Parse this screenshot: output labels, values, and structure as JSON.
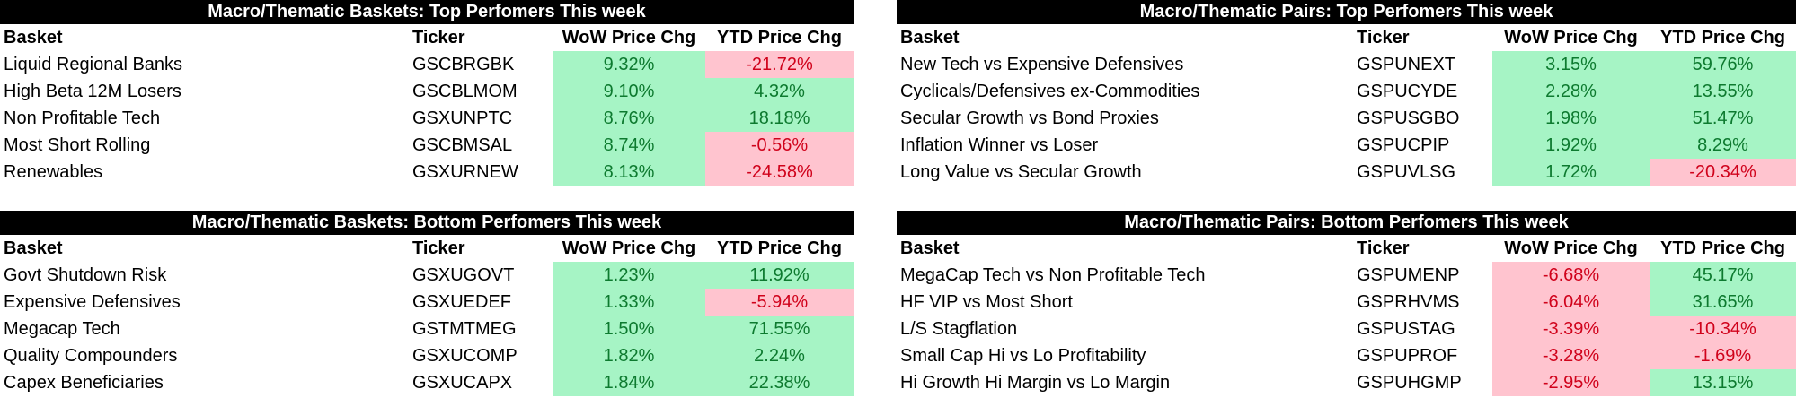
{
  "colors": {
    "positive_bg": "#a6f4c5",
    "positive_text": "#0d7a2f",
    "negative_bg": "#ffc4cf",
    "negative_text": "#d0021b",
    "title_bg": "#000000"
  },
  "panels": [
    {
      "title": "Macro/Thematic Baskets: Top Perfomers This week",
      "headers": [
        "Basket",
        "Ticker",
        "WoW Price Chg",
        "YTD Price Chg"
      ],
      "rows": [
        [
          "Liquid Regional Banks",
          "GSCBRGBK",
          "9.32%",
          "-21.72%"
        ],
        [
          "High Beta 12M Losers",
          "GSCBLMOM",
          "9.10%",
          "4.32%"
        ],
        [
          "Non Profitable Tech",
          "GSXUNPTC",
          "8.76%",
          "18.18%"
        ],
        [
          "Most Short Rolling",
          "GSCBMSAL",
          "8.74%",
          "-0.56%"
        ],
        [
          "Renewables",
          "GSXURNEW",
          "8.13%",
          "-24.58%"
        ]
      ]
    },
    {
      "title": "Macro/Thematic Pairs: Top Perfomers This week",
      "headers": [
        "Basket",
        "Ticker",
        "WoW Price Chg",
        "YTD Price Chg"
      ],
      "rows": [
        [
          "New Tech vs Expensive Defensives",
          "GSPUNEXT",
          "3.15%",
          "59.76%"
        ],
        [
          "Cyclicals/Defensives ex-Commodities",
          "GSPUCYDE",
          "2.28%",
          "13.55%"
        ],
        [
          "Secular Growth vs Bond Proxies",
          "GSPUSGBO",
          "1.98%",
          "51.47%"
        ],
        [
          "Inflation Winner vs Loser",
          "GSPUCPIP",
          "1.92%",
          "8.29%"
        ],
        [
          "Long Value vs Secular Growth",
          "GSPUVLSG",
          "1.72%",
          "-20.34%"
        ]
      ]
    },
    {
      "title": "Macro/Thematic Baskets: Bottom Perfomers This week",
      "headers": [
        "Basket",
        "Ticker",
        "WoW Price Chg",
        "YTD Price Chg"
      ],
      "rows": [
        [
          "Govt Shutdown Risk",
          "GSXUGOVT",
          "1.23%",
          "11.92%"
        ],
        [
          "Expensive Defensives",
          "GSXUEDEF",
          "1.33%",
          "-5.94%"
        ],
        [
          "Megacap Tech",
          "GSTMTMEG",
          "1.50%",
          "71.55%"
        ],
        [
          "Quality Compounders",
          "GSXUCOMP",
          "1.82%",
          "2.24%"
        ],
        [
          "Capex Beneficiaries",
          "GSXUCAPX",
          "1.84%",
          "22.38%"
        ]
      ]
    },
    {
      "title": "Macro/Thematic Pairs: Bottom Perfomers This week",
      "headers": [
        "Basket",
        "Ticker",
        "WoW Price Chg",
        "YTD Price Chg"
      ],
      "rows": [
        [
          "MegaCap Tech vs Non Profitable Tech",
          "GSPUMENP",
          "-6.68%",
          "45.17%"
        ],
        [
          "HF VIP vs Most Short",
          "GSPRHVMS",
          "-6.04%",
          "31.65%"
        ],
        [
          "L/S Stagflation",
          "GSPUSTAG",
          "-3.39%",
          "-10.34%"
        ],
        [
          "Small Cap Hi vs Lo Profitability",
          "GSPUPROF",
          "-3.28%",
          "-1.69%"
        ],
        [
          "Hi Growth Hi Margin vs Lo Margin",
          "GSPUHGMP",
          "-2.95%",
          "13.15%"
        ]
      ]
    }
  ]
}
